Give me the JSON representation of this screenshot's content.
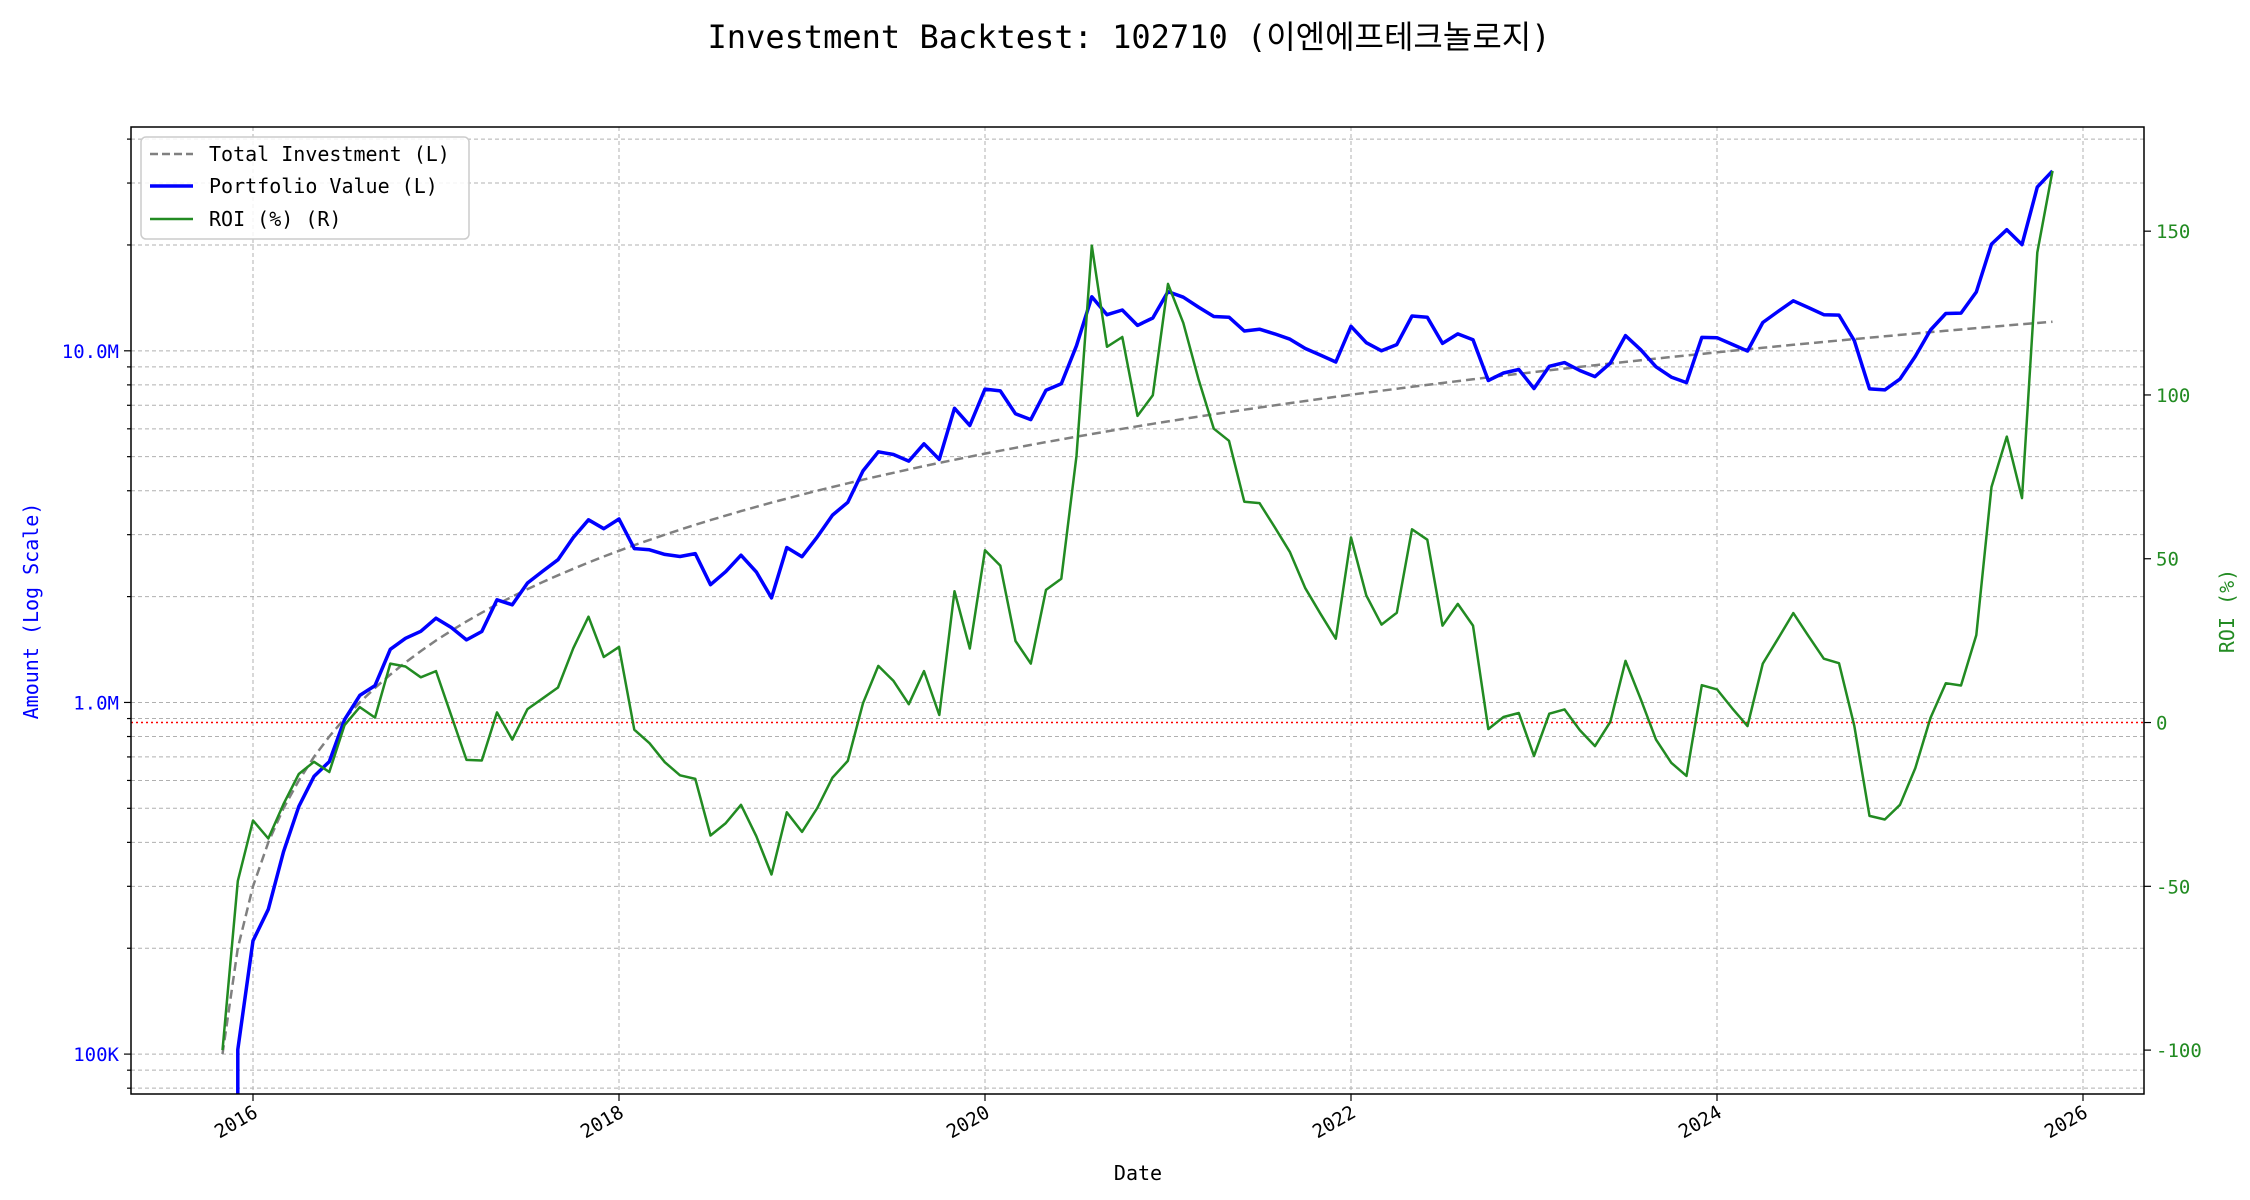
{
  "chart_data": {
    "type": "line",
    "title": "Investment Backtest: 102710 (이엔에프테크놀로지)",
    "xlabel": "Date",
    "ylabel_left": "Amount (Log Scale)",
    "ylabel_right": "ROI (%)",
    "y_left_scale": "log",
    "y_left_lim": [
      77000,
      43300000
    ],
    "y_right_lim": [
      -113.4,
      181.8
    ],
    "x_lim": [
      "2015-05",
      "2026-05"
    ],
    "x_ticks": [
      "2016",
      "2018",
      "2020",
      "2022",
      "2024",
      "2026"
    ],
    "y_left_ticks": [
      {
        "value": 100000,
        "label": "100K"
      },
      {
        "value": 1000000,
        "label": "1.0M"
      },
      {
        "value": 10000000,
        "label": "10.0M"
      }
    ],
    "y_right_ticks": [
      {
        "value": -100,
        "label": "-100"
      },
      {
        "value": -50,
        "label": "-50"
      },
      {
        "value": 0,
        "label": "0"
      },
      {
        "value": 50,
        "label": "50"
      },
      {
        "value": 100,
        "label": "100"
      },
      {
        "value": 150,
        "label": "150"
      }
    ],
    "grid": true,
    "legend_position": "top-left",
    "reference_line": {
      "axis": "right",
      "value": 0,
      "color": "#ff0000",
      "style": "dotted"
    },
    "colors": {
      "investment": "#808080",
      "portfolio": "#0000ff",
      "roi": "#228b22",
      "left_axis": "#0000ff",
      "right_axis": "#228b22"
    },
    "dates": [
      "2015-11",
      "2015-12",
      "2016-01",
      "2016-02",
      "2016-03",
      "2016-04",
      "2016-05",
      "2016-06",
      "2016-07",
      "2016-08",
      "2016-09",
      "2016-10",
      "2016-11",
      "2016-12",
      "2017-01",
      "2017-02",
      "2017-03",
      "2017-04",
      "2017-05",
      "2017-06",
      "2017-07",
      "2017-08",
      "2017-09",
      "2017-10",
      "2017-11",
      "2017-12",
      "2018-01",
      "2018-02",
      "2018-03",
      "2018-04",
      "2018-05",
      "2018-06",
      "2018-07",
      "2018-08",
      "2018-09",
      "2018-10",
      "2018-11",
      "2018-12",
      "2019-01",
      "2019-02",
      "2019-03",
      "2019-04",
      "2019-05",
      "2019-06",
      "2019-07",
      "2019-08",
      "2019-09",
      "2019-10",
      "2019-11",
      "2019-12",
      "2020-01",
      "2020-02",
      "2020-03",
      "2020-04",
      "2020-05",
      "2020-06",
      "2020-07",
      "2020-08",
      "2020-09",
      "2020-10",
      "2020-11",
      "2020-12",
      "2021-01",
      "2021-02",
      "2021-03",
      "2021-04",
      "2021-05",
      "2021-06",
      "2021-07",
      "2021-08",
      "2021-09",
      "2021-10",
      "2021-11",
      "2021-12",
      "2022-01",
      "2022-02",
      "2022-03",
      "2022-04",
      "2022-05",
      "2022-06",
      "2022-07",
      "2022-08",
      "2022-09",
      "2022-10",
      "2022-11",
      "2022-12",
      "2023-01",
      "2023-02",
      "2023-03",
      "2023-04",
      "2023-05",
      "2023-06",
      "2023-07",
      "2023-08",
      "2023-09",
      "2023-10",
      "2023-11",
      "2023-12",
      "2024-01",
      "2024-02",
      "2024-03",
      "2024-04",
      "2024-05",
      "2024-06",
      "2024-07",
      "2024-08",
      "2024-09",
      "2024-10",
      "2024-11",
      "2024-12",
      "2025-01",
      "2025-02",
      "2025-03",
      "2025-04",
      "2025-05",
      "2025-06",
      "2025-07",
      "2025-08",
      "2025-09",
      "2025-10",
      "2025-11"
    ],
    "series": [
      {
        "name": "Total Investment (L)",
        "axis": "left",
        "style": "dashed",
        "values": [
          100000,
          200000,
          300000,
          400000,
          500000,
          600000,
          700000,
          800000,
          900000,
          1000000,
          1100000,
          1200000,
          1300000,
          1400000,
          1500000,
          1600000,
          1700000,
          1800000,
          1900000,
          2000000,
          2100000,
          2200000,
          2300000,
          2400000,
          2500000,
          2600000,
          2700000,
          2800000,
          2900000,
          3000000,
          3100000,
          3200000,
          3300000,
          3400000,
          3500000,
          3600000,
          3700000,
          3800000,
          3900000,
          4000000,
          4100000,
          4200000,
          4300000,
          4400000,
          4500000,
          4600000,
          4700000,
          4800000,
          4900000,
          5000000,
          5100000,
          5200000,
          5300000,
          5400000,
          5500000,
          5600000,
          5700000,
          5800000,
          5900000,
          6000000,
          6100000,
          6200000,
          6300000,
          6400000,
          6500000,
          6600000,
          6700000,
          6800000,
          6900000,
          7000000,
          7100000,
          7200000,
          7300000,
          7400000,
          7500000,
          7600000,
          7700000,
          7800000,
          7900000,
          8000000,
          8100000,
          8200000,
          8300000,
          8400000,
          8500000,
          8600000,
          8700000,
          8800000,
          8900000,
          9000000,
          9100000,
          9200000,
          9300000,
          9400000,
          9500000,
          9600000,
          9700000,
          9800000,
          9900000,
          10000000,
          10100000,
          10200000,
          10300000,
          10400000,
          10500000,
          10600000,
          10700000,
          10800000,
          10900000,
          11000000,
          11100000,
          11200000,
          11300000,
          11400000,
          11500000,
          11600000,
          11700000,
          11800000,
          11900000,
          12000000,
          12100000
        ]
      },
      {
        "name": "Portfolio Value (L)",
        "axis": "left",
        "style": "solid",
        "values": [
          0,
          103000,
          210000,
          258000,
          376000,
          506000,
          616000,
          679000,
          893000,
          1047000,
          1117000,
          1416000,
          1522000,
          1593000,
          1736000,
          1634000,
          1506000,
          1591000,
          1959000,
          1896000,
          2186000,
          2363000,
          2546000,
          2945000,
          3308000,
          3120000,
          3324000,
          2738000,
          2717000,
          2637000,
          2601000,
          2650000,
          2162000,
          2356000,
          2622000,
          2351000,
          1983000,
          2759000,
          2597000,
          2956000,
          3411000,
          3709000,
          4554000,
          5161000,
          5072000,
          4858000,
          5438000,
          4910000,
          6865000,
          6130000,
          7783000,
          7691000,
          6620000,
          6372000,
          7728000,
          8058000,
          10340000,
          14245000,
          12667000,
          13062000,
          11810000,
          12394000,
          14736000,
          14208000,
          13312000,
          12520000,
          12462000,
          11383000,
          11523000,
          11172000,
          10792000,
          10152000,
          9724000,
          9294000,
          11738000,
          10549000,
          10002000,
          10413000,
          12561000,
          12464000,
          10498000,
          11168000,
          10757000,
          8232000,
          8645000,
          8849000,
          7813000,
          9038000,
          9256000,
          8793000,
          8445000,
          9218000,
          11048000,
          10067000,
          9006000,
          8419000,
          8119000,
          10917000,
          10900000,
          10430000,
          9989000,
          12036000,
          12937000,
          13874000,
          13272000,
          12667000,
          12637000,
          10692000,
          7794000,
          7744000,
          8314000,
          9643000,
          11458000,
          12768000,
          12800000,
          14697000,
          20112000,
          22101000,
          20052000,
          29220000,
          32476000
        ]
      },
      {
        "name": "ROI (%) (R)",
        "axis": "right",
        "style": "solid",
        "values": [
          -100,
          -48.4,
          -29.9,
          -35.4,
          -24.9,
          -15.7,
          -12.0,
          -15.1,
          -0.8,
          4.7,
          1.5,
          18.0,
          17.1,
          13.8,
          15.7,
          2.1,
          -11.4,
          -11.6,
          3.1,
          -5.2,
          4.1,
          7.4,
          10.7,
          22.7,
          32.3,
          20.0,
          23.1,
          -2.2,
          -6.3,
          -12.1,
          -16.1,
          -17.2,
          -34.5,
          -30.7,
          -25.1,
          -34.7,
          -46.4,
          -27.4,
          -33.4,
          -26.1,
          -16.8,
          -11.7,
          5.9,
          17.3,
          12.7,
          5.6,
          15.7,
          2.3,
          40.1,
          22.6,
          52.6,
          47.9,
          24.9,
          18.0,
          40.5,
          43.9,
          81.4,
          145.6,
          114.7,
          117.7,
          93.6,
          99.9,
          133.9,
          122.0,
          104.8,
          89.7,
          86.0,
          67.4,
          67.0,
          59.6,
          52.0,
          41.0,
          33.2,
          25.6,
          56.5,
          38.8,
          29.9,
          33.5,
          59.0,
          55.8,
          29.6,
          36.2,
          29.6,
          -2.0,
          1.7,
          2.9,
          -10.2,
          2.7,
          4.0,
          -2.3,
          -7.2,
          0.2,
          18.8,
          7.1,
          -5.2,
          -12.3,
          -16.3,
          11.4,
          10.1,
          4.3,
          -1.1,
          18.0,
          25.6,
          33.4,
          26.4,
          19.5,
          18.1,
          -1.0,
          -28.5,
          -29.6,
          -25.1,
          -13.9,
          1.4,
          12.0,
          11.3,
          26.7,
          71.9,
          87.3,
          68.5,
          143.5,
          168.4
        ]
      }
    ]
  }
}
